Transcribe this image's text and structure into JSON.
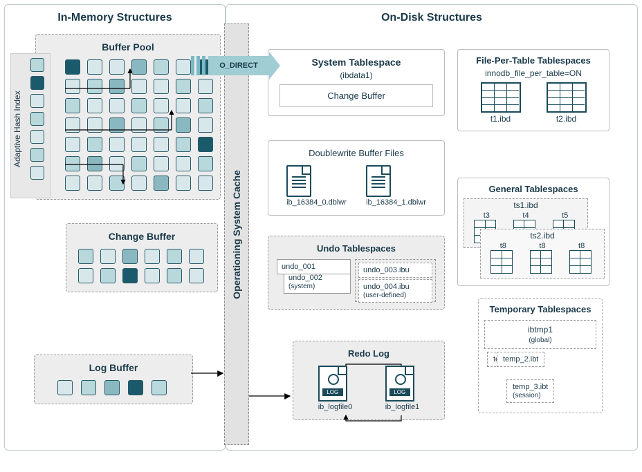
{
  "left_title": "In-Memory Structures",
  "right_title": "On-Disk Structures",
  "os_cache": "Operationing System Cache",
  "o_direct": "O_DIRECT",
  "ahi_label": "Adaptive Hash Index",
  "buffer_pool": {
    "title": "Buffer Pool"
  },
  "change_buffer": {
    "title": "Change Buffer"
  },
  "log_buffer": {
    "title": "Log Buffer"
  },
  "sys_ts": {
    "title": "System Tablespace",
    "subtitle": "(ibdata1)",
    "inner": "Change Buffer"
  },
  "fpt": {
    "title": "File-Per-Table Tablespaces",
    "subtitle": "innodb_file_per_table=ON",
    "f1": "t1.ibd",
    "f2": "t2.ibd"
  },
  "dblwr": {
    "title": "Doublewrite Buffer Files",
    "f1": "ib_16384_0.dblwr",
    "f2": "ib_16384_1.dblwr"
  },
  "gen_ts": {
    "title": "General Tablespaces",
    "ts1": "ts1.ibd",
    "ts2": "ts2.ibd",
    "t1": "t3",
    "t2": "t4",
    "t3": "t5",
    "t4": "t8",
    "t5": "t8",
    "t6": "t8"
  },
  "undo": {
    "title": "Undo Tablespaces",
    "u1": "undo_001",
    "u2": "undo_002",
    "sys": "(system)",
    "u3": "undo_003.ibu",
    "u4": "undo_004.ibu",
    "usr": "(user-defined)"
  },
  "temp": {
    "title": "Temporary Tablespaces",
    "g": "ibtmp1",
    "gl": "(global)",
    "s1": "temp_1.ibt",
    "s2": "temp_2.ibt",
    "s3": "temp_3.ibt",
    "sl": "(session)"
  },
  "redo": {
    "title": "Redo Log",
    "f1": "ib_logfile0",
    "f2": "ib_logfile1",
    "tag": "LOG"
  },
  "colors": {
    "c0": "#b8d8dc",
    "c1": "#4a8a9a",
    "c2": "#d8e8ea",
    "c3": "#1a5a6a",
    "c4": "#8ab8c0",
    "border": "#2a5a6a",
    "dash": "#999999",
    "bg_dash": "#ededed"
  },
  "bp_cells": [
    "c3",
    "c2",
    "c2",
    "c4",
    "c0",
    "c2",
    "c3",
    "c2",
    "c0",
    "c4",
    "c2",
    "c2",
    "c0",
    "c2",
    "c0",
    "c2",
    "c2",
    "c0",
    "c2",
    "c2",
    "c0",
    "c2",
    "c2",
    "c4",
    "c2",
    "c0",
    "c4",
    "c2",
    "c2",
    "c0",
    "c2",
    "c2",
    "c2",
    "c0",
    "c3",
    "c0",
    "c4",
    "c2",
    "c0",
    "c2",
    "c2",
    "c0",
    "c2",
    "c2",
    "c0",
    "c2",
    "c4",
    "c2",
    "c2"
  ],
  "ahi_cells": [
    "c0",
    "c3",
    "c2",
    "c0",
    "c2",
    "c0",
    "c2"
  ],
  "cb_cells": [
    "c0",
    "c2",
    "c4",
    "c2",
    "c0",
    "c2",
    "c2",
    "c0",
    "c3",
    "c2",
    "c0",
    "c2"
  ],
  "lb_cells": [
    "c2",
    "c0",
    "c4",
    "c3",
    "c0"
  ]
}
